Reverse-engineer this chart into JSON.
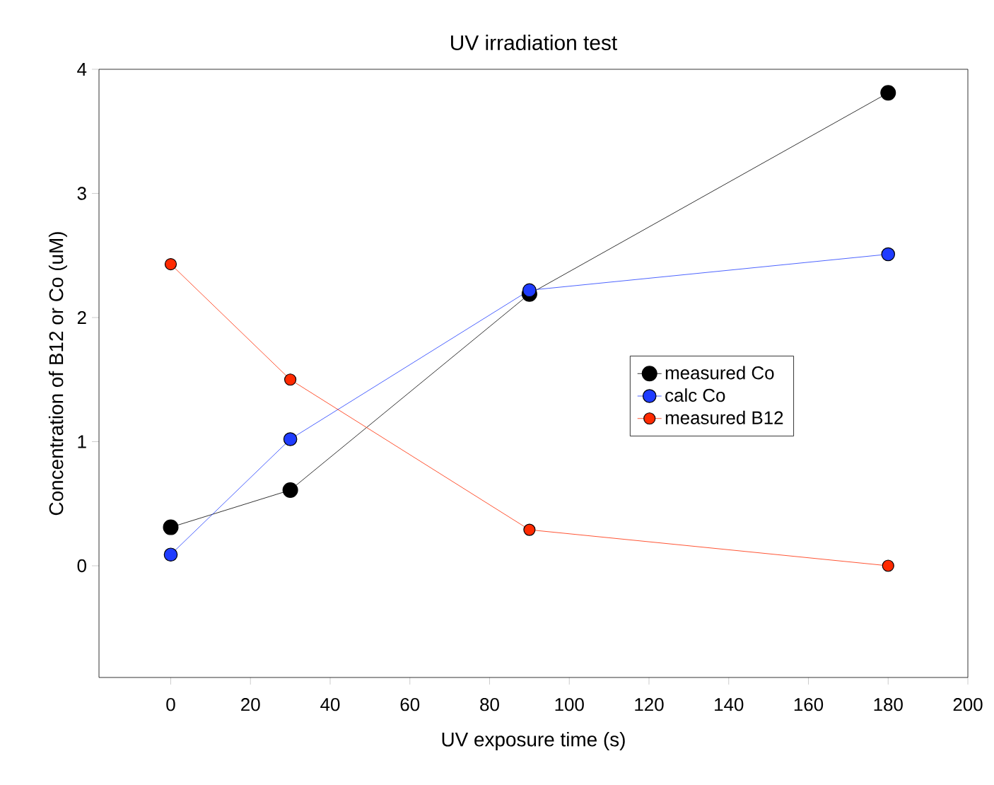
{
  "chart_data": {
    "type": "line",
    "title": "UV irradiation test",
    "xlabel": "UV exposure time (s)",
    "ylabel": "Concentration of B12 or Co (uM)",
    "x": [
      0,
      30,
      90,
      180
    ],
    "series": [
      {
        "name": "measured Co",
        "color": "#000000",
        "values": [
          0.31,
          0.61,
          2.19,
          3.81
        ]
      },
      {
        "name": "calc Co",
        "color": "#1f3cff",
        "values": [
          0.09,
          1.02,
          2.22,
          2.51
        ]
      },
      {
        "name": "measured B12",
        "color": "#ff2a00",
        "values": [
          2.43,
          1.5,
          0.29,
          0.0
        ]
      }
    ],
    "xlim": [
      -18,
      200
    ],
    "xticks": [
      0,
      20,
      40,
      60,
      80,
      100,
      120,
      140,
      160,
      180,
      200
    ],
    "ylim": [
      -0.9,
      4
    ],
    "yticks": [
      0,
      1,
      2,
      3,
      4
    ],
    "grid": false,
    "legend": "right",
    "marker": "circle",
    "line_style": "solid"
  }
}
